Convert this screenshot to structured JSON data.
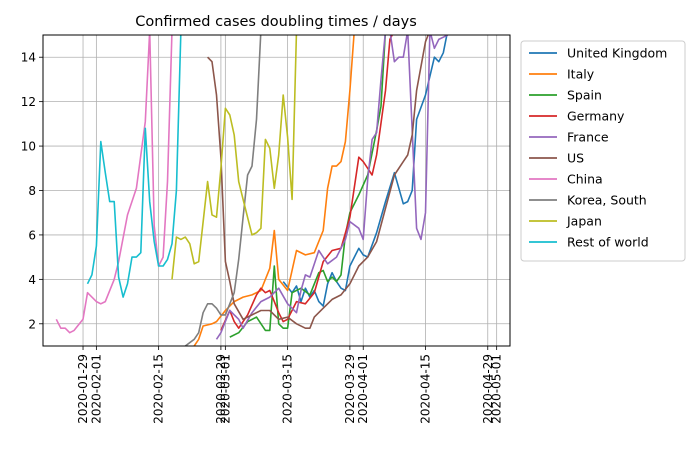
{
  "chart_data": {
    "type": "line",
    "title": "Confirmed cases doubling times / days",
    "xlabel": "",
    "ylabel": "",
    "xlim": [
      "2020-01-20",
      "2020-05-04"
    ],
    "ylim": [
      1.0,
      15.0
    ],
    "grid": true,
    "legend_position": "outside-right",
    "x_ticks": [
      "2020-01-29",
      "2020-02-01",
      "2020-02-15",
      "2020-02-29",
      "2020-03-01",
      "2020-03-15",
      "2020-03-29",
      "2020-04-01",
      "2020-04-15",
      "2020-04-29",
      "2020-05-01"
    ],
    "y_ticks": [
      2,
      4,
      6,
      8,
      10,
      12,
      14
    ],
    "series": [
      {
        "name": "United Kingdom",
        "color": "#1f77b4",
        "points": [
          [
            "2020-03-14",
            3.9
          ],
          [
            "2020-03-16",
            3.4
          ],
          [
            "2020-03-17",
            3.7
          ],
          [
            "2020-03-18",
            3.0
          ],
          [
            "2020-03-19",
            3.6
          ],
          [
            "2020-03-20",
            3.2
          ],
          [
            "2020-03-21",
            3.5
          ],
          [
            "2020-03-22",
            3.0
          ],
          [
            "2020-03-23",
            2.8
          ],
          [
            "2020-03-24",
            3.8
          ],
          [
            "2020-03-25",
            4.3
          ],
          [
            "2020-03-26",
            3.9
          ],
          [
            "2020-03-27",
            3.6
          ],
          [
            "2020-03-28",
            3.5
          ],
          [
            "2020-03-29",
            4.6
          ],
          [
            "2020-03-31",
            5.4
          ],
          [
            "2020-04-01",
            5.1
          ],
          [
            "2020-04-02",
            5.0
          ],
          [
            "2020-04-04",
            6.1
          ],
          [
            "2020-04-06",
            7.5
          ],
          [
            "2020-04-08",
            8.8
          ],
          [
            "2020-04-10",
            7.4
          ],
          [
            "2020-04-11",
            7.5
          ],
          [
            "2020-04-12",
            8.0
          ],
          [
            "2020-04-13",
            11.2
          ],
          [
            "2020-04-15",
            12.3
          ],
          [
            "2020-04-17",
            14.0
          ],
          [
            "2020-04-18",
            13.8
          ],
          [
            "2020-04-19",
            14.2
          ],
          [
            "2020-04-20",
            15.2
          ]
        ]
      },
      {
        "name": "Italy",
        "color": "#ff7f0e",
        "points": [
          [
            "2020-02-23",
            1.0
          ],
          [
            "2020-02-24",
            1.3
          ],
          [
            "2020-02-25",
            1.9
          ],
          [
            "2020-02-27",
            2.0
          ],
          [
            "2020-02-28",
            2.1
          ],
          [
            "2020-03-01",
            2.6
          ],
          [
            "2020-03-03",
            3.0
          ],
          [
            "2020-03-05",
            3.2
          ],
          [
            "2020-03-07",
            3.3
          ],
          [
            "2020-03-09",
            3.5
          ],
          [
            "2020-03-11",
            4.5
          ],
          [
            "2020-03-12",
            6.2
          ],
          [
            "2020-03-13",
            4.0
          ],
          [
            "2020-03-15",
            3.5
          ],
          [
            "2020-03-17",
            5.3
          ],
          [
            "2020-03-19",
            5.1
          ],
          [
            "2020-03-21",
            5.2
          ],
          [
            "2020-03-23",
            6.2
          ],
          [
            "2020-03-24",
            8.1
          ],
          [
            "2020-03-25",
            9.1
          ],
          [
            "2020-03-26",
            9.1
          ],
          [
            "2020-03-27",
            9.3
          ],
          [
            "2020-03-28",
            10.2
          ],
          [
            "2020-03-29",
            12.5
          ],
          [
            "2020-03-30",
            15.2
          ]
        ]
      },
      {
        "name": "Spain",
        "color": "#2ca02c",
        "points": [
          [
            "2020-03-02",
            1.4
          ],
          [
            "2020-03-04",
            1.6
          ],
          [
            "2020-03-06",
            2.1
          ],
          [
            "2020-03-08",
            2.3
          ],
          [
            "2020-03-10",
            1.7
          ],
          [
            "2020-03-11",
            1.7
          ],
          [
            "2020-03-12",
            4.6
          ],
          [
            "2020-03-13",
            2.0
          ],
          [
            "2020-03-14",
            1.8
          ],
          [
            "2020-03-15",
            1.8
          ],
          [
            "2020-03-16",
            3.4
          ],
          [
            "2020-03-18",
            3.6
          ],
          [
            "2020-03-20",
            3.3
          ],
          [
            "2020-03-22",
            4.3
          ],
          [
            "2020-03-23",
            4.4
          ],
          [
            "2020-03-24",
            3.9
          ],
          [
            "2020-03-25",
            4.1
          ],
          [
            "2020-03-26",
            3.9
          ],
          [
            "2020-03-27",
            4.2
          ],
          [
            "2020-03-28",
            6.0
          ],
          [
            "2020-03-29",
            7.0
          ],
          [
            "2020-03-31",
            7.8
          ],
          [
            "2020-04-02",
            8.7
          ],
          [
            "2020-04-04",
            10.7
          ],
          [
            "2020-04-05",
            11.8
          ],
          [
            "2020-04-06",
            15.2
          ]
        ]
      },
      {
        "name": "Germany",
        "color": "#d62728",
        "points": [
          [
            "2020-02-29",
            1.7
          ],
          [
            "2020-03-02",
            2.6
          ],
          [
            "2020-03-03",
            2.1
          ],
          [
            "2020-03-04",
            1.8
          ],
          [
            "2020-03-05",
            2.1
          ],
          [
            "2020-03-06",
            2.4
          ],
          [
            "2020-03-08",
            3.3
          ],
          [
            "2020-03-09",
            3.6
          ],
          [
            "2020-03-10",
            3.4
          ],
          [
            "2020-03-11",
            3.5
          ],
          [
            "2020-03-12",
            3.0
          ],
          [
            "2020-03-13",
            2.5
          ],
          [
            "2020-03-14",
            2.1
          ],
          [
            "2020-03-15",
            2.2
          ],
          [
            "2020-03-17",
            3.0
          ],
          [
            "2020-03-19",
            2.9
          ],
          [
            "2020-03-21",
            3.4
          ],
          [
            "2020-03-23",
            4.8
          ],
          [
            "2020-03-25",
            5.3
          ],
          [
            "2020-03-27",
            5.4
          ],
          [
            "2020-03-29",
            6.8
          ],
          [
            "2020-03-31",
            9.5
          ],
          [
            "2020-04-01",
            9.3
          ],
          [
            "2020-04-02",
            9.0
          ],
          [
            "2020-04-03",
            8.7
          ],
          [
            "2020-04-04",
            9.6
          ],
          [
            "2020-04-06",
            12.5
          ],
          [
            "2020-04-07",
            14.8
          ],
          [
            "2020-04-08",
            15.2
          ]
        ]
      },
      {
        "name": "France",
        "color": "#9467bd",
        "points": [
          [
            "2020-02-28",
            1.3
          ],
          [
            "2020-02-29",
            1.6
          ],
          [
            "2020-03-02",
            2.6
          ],
          [
            "2020-03-04",
            2.2
          ],
          [
            "2020-03-05",
            1.8
          ],
          [
            "2020-03-07",
            2.5
          ],
          [
            "2020-03-09",
            3.0
          ],
          [
            "2020-03-11",
            3.2
          ],
          [
            "2020-03-13",
            3.6
          ],
          [
            "2020-03-15",
            2.9
          ],
          [
            "2020-03-17",
            2.5
          ],
          [
            "2020-03-18",
            3.5
          ],
          [
            "2020-03-19",
            4.2
          ],
          [
            "2020-03-20",
            4.1
          ],
          [
            "2020-03-22",
            5.3
          ],
          [
            "2020-03-24",
            4.7
          ],
          [
            "2020-03-26",
            5.0
          ],
          [
            "2020-03-28",
            5.8
          ],
          [
            "2020-03-29",
            6.6
          ],
          [
            "2020-03-31",
            6.3
          ],
          [
            "2020-04-01",
            5.8
          ],
          [
            "2020-04-02",
            8.5
          ],
          [
            "2020-04-03",
            10.3
          ],
          [
            "2020-04-04",
            10.6
          ],
          [
            "2020-04-05",
            13.0
          ],
          [
            "2020-04-06",
            15.2
          ],
          [
            "2020-04-07",
            15.2
          ],
          [
            "2020-04-08",
            13.8
          ],
          [
            "2020-04-09",
            14.0
          ],
          [
            "2020-04-10",
            14.0
          ],
          [
            "2020-04-11",
            15.2
          ],
          [
            "2020-04-13",
            6.3
          ],
          [
            "2020-04-14",
            5.8
          ],
          [
            "2020-04-15",
            7.0
          ],
          [
            "2020-04-16",
            15.2
          ],
          [
            "2020-04-17",
            14.4
          ],
          [
            "2020-04-18",
            14.8
          ],
          [
            "2020-04-19",
            14.9
          ],
          [
            "2020-04-20",
            15.0
          ]
        ]
      },
      {
        "name": "US",
        "color": "#8c564b",
        "points": [
          [
            "2020-02-26",
            14.0
          ],
          [
            "2020-02-27",
            13.8
          ],
          [
            "2020-02-28",
            12.3
          ],
          [
            "2020-02-29",
            9.5
          ],
          [
            "2020-03-01",
            4.8
          ],
          [
            "2020-03-02",
            3.9
          ],
          [
            "2020-03-03",
            2.9
          ],
          [
            "2020-03-05",
            2.2
          ],
          [
            "2020-03-07",
            2.4
          ],
          [
            "2020-03-09",
            2.6
          ],
          [
            "2020-03-11",
            2.6
          ],
          [
            "2020-03-13",
            2.2
          ],
          [
            "2020-03-15",
            2.3
          ],
          [
            "2020-03-17",
            2.0
          ],
          [
            "2020-03-19",
            1.8
          ],
          [
            "2020-03-20",
            1.8
          ],
          [
            "2020-03-21",
            2.3
          ],
          [
            "2020-03-23",
            2.7
          ],
          [
            "2020-03-25",
            3.1
          ],
          [
            "2020-03-27",
            3.3
          ],
          [
            "2020-03-29",
            3.8
          ],
          [
            "2020-03-31",
            4.6
          ],
          [
            "2020-04-02",
            5.0
          ],
          [
            "2020-04-04",
            5.7
          ],
          [
            "2020-04-06",
            7.2
          ],
          [
            "2020-04-08",
            8.7
          ],
          [
            "2020-04-10",
            9.3
          ],
          [
            "2020-04-11",
            9.6
          ],
          [
            "2020-04-12",
            10.5
          ],
          [
            "2020-04-13",
            12.5
          ],
          [
            "2020-04-15",
            14.7
          ],
          [
            "2020-04-16",
            15.2
          ]
        ]
      },
      {
        "name": "China",
        "color": "#e377c2",
        "points": [
          [
            "2020-01-23",
            2.2
          ],
          [
            "2020-01-24",
            1.8
          ],
          [
            "2020-01-25",
            1.8
          ],
          [
            "2020-01-26",
            1.6
          ],
          [
            "2020-01-27",
            1.7
          ],
          [
            "2020-01-29",
            2.2
          ],
          [
            "2020-01-30",
            3.4
          ],
          [
            "2020-02-01",
            3.0
          ],
          [
            "2020-02-02",
            2.9
          ],
          [
            "2020-02-03",
            3.0
          ],
          [
            "2020-02-05",
            4.0
          ],
          [
            "2020-02-06",
            4.8
          ],
          [
            "2020-02-08",
            6.9
          ],
          [
            "2020-02-10",
            8.1
          ],
          [
            "2020-02-12",
            11.1
          ],
          [
            "2020-02-13",
            15.2
          ],
          [
            "2020-02-14",
            6.4
          ],
          [
            "2020-02-15",
            4.6
          ],
          [
            "2020-02-16",
            5.0
          ],
          [
            "2020-02-17",
            8.4
          ],
          [
            "2020-02-18",
            15.2
          ]
        ]
      },
      {
        "name": "Korea, South",
        "color": "#7f7f7f",
        "points": [
          [
            "2020-02-21",
            1.0
          ],
          [
            "2020-02-23",
            1.3
          ],
          [
            "2020-02-24",
            1.6
          ],
          [
            "2020-02-25",
            2.5
          ],
          [
            "2020-02-26",
            2.9
          ],
          [
            "2020-02-27",
            2.9
          ],
          [
            "2020-02-28",
            2.7
          ],
          [
            "2020-02-29",
            2.4
          ],
          [
            "2020-03-01",
            2.4
          ],
          [
            "2020-03-02",
            2.9
          ],
          [
            "2020-03-03",
            3.4
          ],
          [
            "2020-03-04",
            4.9
          ],
          [
            "2020-03-05",
            6.8
          ],
          [
            "2020-03-06",
            8.7
          ],
          [
            "2020-03-07",
            9.1
          ],
          [
            "2020-03-08",
            11.2
          ],
          [
            "2020-03-09",
            15.2
          ]
        ]
      },
      {
        "name": "Japan",
        "color": "#bcbd22",
        "points": [
          [
            "2020-02-18",
            4.0
          ],
          [
            "2020-02-19",
            5.9
          ],
          [
            "2020-02-20",
            5.8
          ],
          [
            "2020-02-21",
            5.9
          ],
          [
            "2020-02-22",
            5.6
          ],
          [
            "2020-02-23",
            4.7
          ],
          [
            "2020-02-24",
            4.8
          ],
          [
            "2020-02-26",
            8.4
          ],
          [
            "2020-02-27",
            6.9
          ],
          [
            "2020-02-28",
            6.8
          ],
          [
            "2020-02-29",
            9.0
          ],
          [
            "2020-03-01",
            11.7
          ],
          [
            "2020-03-02",
            11.4
          ],
          [
            "2020-03-03",
            10.5
          ],
          [
            "2020-03-04",
            8.4
          ],
          [
            "2020-03-05",
            7.6
          ],
          [
            "2020-03-07",
            6.0
          ],
          [
            "2020-03-08",
            6.1
          ],
          [
            "2020-03-09",
            6.3
          ],
          [
            "2020-03-10",
            10.3
          ],
          [
            "2020-03-11",
            9.9
          ],
          [
            "2020-03-12",
            8.1
          ],
          [
            "2020-03-13",
            9.6
          ],
          [
            "2020-03-14",
            12.3
          ],
          [
            "2020-03-15",
            10.4
          ],
          [
            "2020-03-16",
            7.6
          ],
          [
            "2020-03-17",
            15.2
          ]
        ]
      },
      {
        "name": "Rest of world",
        "color": "#17becf",
        "points": [
          [
            "2020-01-30",
            3.8
          ],
          [
            "2020-01-31",
            4.2
          ],
          [
            "2020-02-01",
            5.5
          ],
          [
            "2020-02-02",
            10.2
          ],
          [
            "2020-02-03",
            8.8
          ],
          [
            "2020-02-04",
            7.5
          ],
          [
            "2020-02-05",
            7.5
          ],
          [
            "2020-02-06",
            4.1
          ],
          [
            "2020-02-07",
            3.2
          ],
          [
            "2020-02-08",
            3.8
          ],
          [
            "2020-02-09",
            5.0
          ],
          [
            "2020-02-10",
            5.0
          ],
          [
            "2020-02-11",
            5.2
          ],
          [
            "2020-02-12",
            10.8
          ],
          [
            "2020-02-13",
            7.5
          ],
          [
            "2020-02-14",
            5.7
          ],
          [
            "2020-02-15",
            4.6
          ],
          [
            "2020-02-16",
            4.6
          ],
          [
            "2020-02-17",
            4.9
          ],
          [
            "2020-02-18",
            5.6
          ],
          [
            "2020-02-19",
            8.0
          ],
          [
            "2020-02-20",
            15.2
          ]
        ]
      }
    ]
  }
}
